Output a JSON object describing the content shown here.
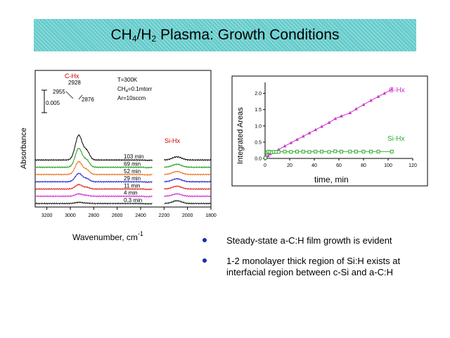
{
  "slide": {
    "title_main": "CH",
    "title_sub1": "4",
    "title_mid": "/H",
    "title_sub2": "2",
    "title_rest": " Plasma:  Growth Conditions",
    "bullets": [
      "Steady-state a-C:H film growth is evident",
      "1-2 monolayer thick region of Si:H exists at interfacial region between c-Si and a-C:H"
    ]
  },
  "colors": {
    "banner": "#66cccc",
    "bullet": "#1a2ab8",
    "ch_series": "#cc33cc",
    "sih_series": "#33aa33"
  },
  "chart_data": [
    {
      "type": "line",
      "ylabel": "Absorbance",
      "xlabel": "Wavenumber, cm",
      "xlabel_exp": "-1",
      "x_ticks": [
        "3200",
        "3000",
        "2800",
        "2600",
        "2400",
        "2200",
        "2000",
        "1800"
      ],
      "xlim": [
        3300,
        1800
      ],
      "x_break": [
        2300,
        2200
      ],
      "scale_bar_label": "0.005",
      "annotations": {
        "c_hx": "C-Hx",
        "si_hx": "Si-Hx",
        "peak_2928": "2928",
        "peak_2955": "2955",
        "peak_2876": "2876",
        "cond_temp": "T=300K",
        "cond_ch4_pre": "CH",
        "cond_ch4_sub": "4",
        "cond_ch4_post": "=0.1mtorr",
        "cond_ar": "Ar=10sccm"
      },
      "series": [
        {
          "name": "103 min",
          "color": "#000000",
          "ch_peak": 0.0125,
          "sih_peak": 0.0016
        },
        {
          "name": "69 min",
          "color": "#1a9a1a",
          "ch_peak": 0.0095,
          "sih_peak": 0.0015
        },
        {
          "name": "52 min",
          "color": "#ee6a12",
          "ch_peak": 0.0065,
          "sih_peak": 0.0015
        },
        {
          "name": "29 min",
          "color": "#1a1add",
          "ch_peak": 0.0042,
          "sih_peak": 0.0015
        },
        {
          "name": "11 min",
          "color": "#dd1a1a",
          "ch_peak": 0.0022,
          "sih_peak": 0.0014
        },
        {
          "name": "4 min",
          "color": "#cc22cc",
          "ch_peak": 0.0012,
          "sih_peak": 0.0012
        },
        {
          "name": "0.3 min",
          "color": "#111111",
          "ch_peak": 0.0006,
          "sih_peak": 0.0014
        }
      ]
    },
    {
      "type": "scatter",
      "xlabel": "time, min",
      "ylabel": "Integrated Areas",
      "x_ticks": [
        "0",
        "20",
        "40",
        "60",
        "80",
        "100",
        "120"
      ],
      "y_ticks": [
        "0.0",
        "0.5",
        "1.0",
        "1.5",
        "2.0"
      ],
      "xlim": [
        0,
        120
      ],
      "ylim": [
        0,
        2.25
      ],
      "series": [
        {
          "name": "C-Hx",
          "color": "#cc33cc",
          "x": [
            0.3,
            1.5,
            2.5,
            4,
            5.5,
            7,
            11,
            16,
            21,
            26,
            31,
            36,
            41,
            46,
            52,
            57,
            62,
            69,
            74,
            80,
            86,
            92,
            97,
            103
          ],
          "y": [
            0.0,
            0.03,
            0.08,
            0.14,
            0.18,
            0.2,
            0.27,
            0.38,
            0.48,
            0.58,
            0.68,
            0.78,
            0.88,
            0.98,
            1.1,
            1.22,
            1.3,
            1.4,
            1.52,
            1.65,
            1.78,
            1.9,
            2.0,
            2.12
          ]
        },
        {
          "name": "Si-Hx",
          "color": "#33aa33",
          "x": [
            0.3,
            1.5,
            2.5,
            4,
            5.5,
            7,
            9,
            11,
            16,
            21,
            26,
            31,
            36,
            41,
            46,
            52,
            57,
            62,
            69,
            74,
            80,
            86,
            92,
            103
          ],
          "y": [
            0.02,
            0.18,
            0.21,
            0.2,
            0.19,
            0.2,
            0.2,
            0.2,
            0.21,
            0.2,
            0.21,
            0.21,
            0.2,
            0.21,
            0.21,
            0.2,
            0.22,
            0.21,
            0.21,
            0.21,
            0.21,
            0.21,
            0.21,
            0.21
          ]
        }
      ]
    }
  ]
}
